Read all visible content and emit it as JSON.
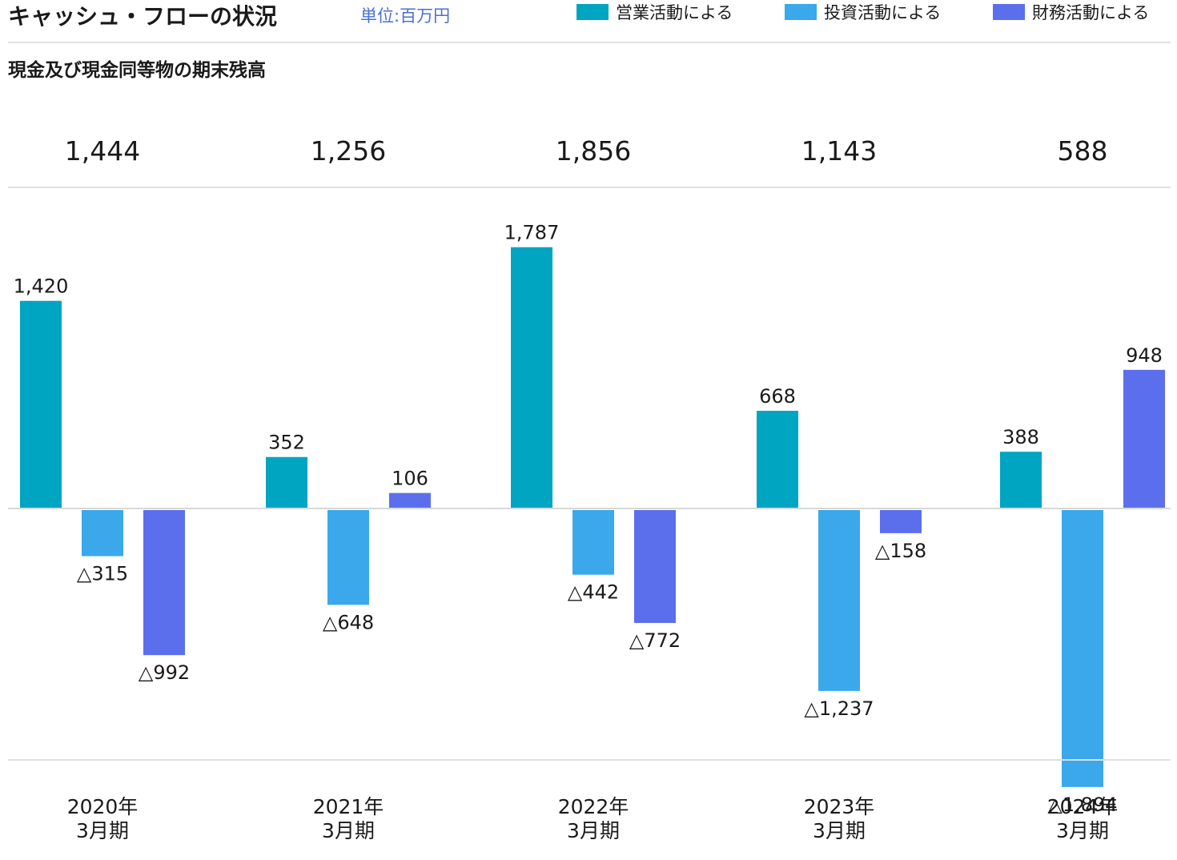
{
  "header": {
    "title": "キャッシュ・フローの状況",
    "unit": "単位:百万円"
  },
  "balance_section": {
    "label": "現金及び現金同等物の期末残高"
  },
  "chart_data": {
    "type": "bar",
    "title": "キャッシュ・フローの状況",
    "unit": "単位:百万円",
    "categories": [
      [
        "2020年",
        "3月期"
      ],
      [
        "2021年",
        "3月期"
      ],
      [
        "2022年",
        "3月期"
      ],
      [
        "2023年",
        "3月期"
      ],
      [
        "2024年",
        "3月期"
      ]
    ],
    "series": [
      {
        "name": "営業活動による",
        "color": "#00a5c2",
        "values": [
          1420,
          352,
          1787,
          668,
          388
        ],
        "labels": [
          "1,420",
          "352",
          "1,787",
          "668",
          "388"
        ]
      },
      {
        "name": "投資活動による",
        "color": "#3aa8ea",
        "values": [
          -315,
          -648,
          -442,
          -1237,
          -1894
        ],
        "labels": [
          "△315",
          "△648",
          "△442",
          "△1,237",
          "△1,894"
        ]
      },
      {
        "name": "財務活動による",
        "color": "#5b6fec",
        "values": [
          -992,
          106,
          -772,
          -158,
          948
        ],
        "labels": [
          "△992",
          "106",
          "△772",
          "△158",
          "948"
        ]
      }
    ],
    "period_end_balance": {
      "label": "現金及び現金同等物の期末残高",
      "values": [
        1444,
        1256,
        1856,
        1143,
        588
      ],
      "labels": [
        "1,444",
        "1,256",
        "1,856",
        "1,143",
        "588"
      ]
    },
    "legend_position": "top-right",
    "grid": false
  }
}
